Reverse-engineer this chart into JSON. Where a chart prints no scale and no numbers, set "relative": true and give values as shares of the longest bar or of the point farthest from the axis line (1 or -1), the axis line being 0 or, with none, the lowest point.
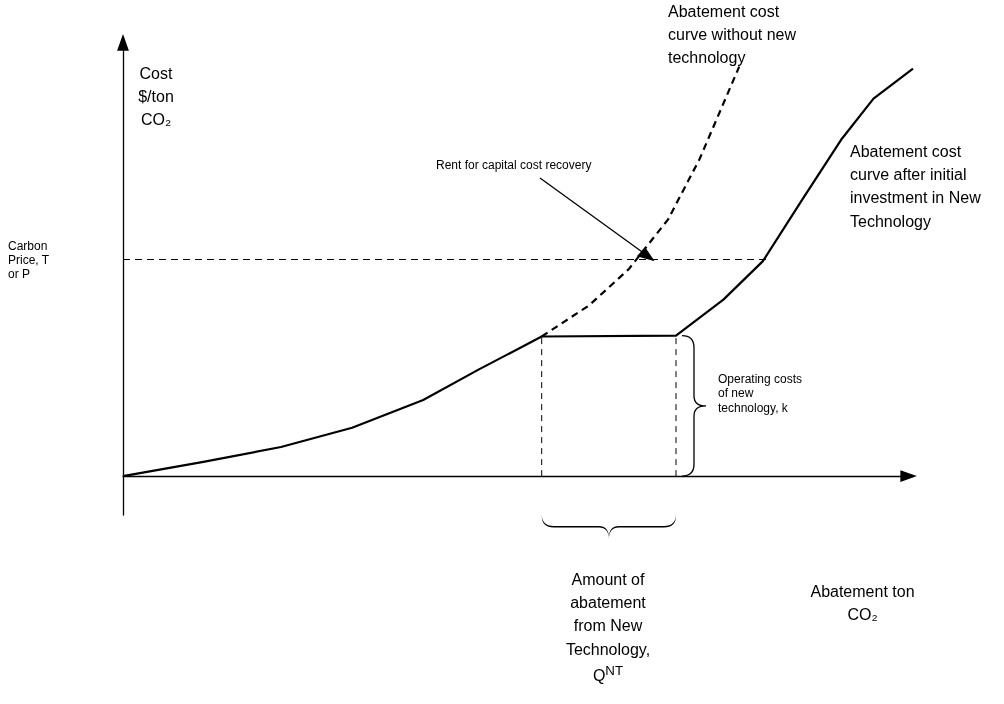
{
  "chart_data": {
    "type": "line",
    "relative": true,
    "grid": false,
    "ylabel": "Cost $/ton CO₂",
    "categories": [
      null,
      null,
      null,
      null,
      null,
      null,
      null,
      null,
      null,
      null,
      null,
      null,
      null,
      null,
      null,
      null,
      null,
      null,
      null,
      null,
      null,
      null,
      null,
      null,
      null,
      null,
      null,
      null,
      null,
      null,
      null,
      null,
      null,
      null,
      null,
      null,
      null,
      null,
      null,
      null,
      null,
      null,
      null,
      null,
      null,
      null,
      null,
      null,
      null,
      null,
      null,
      null,
      null,
      null,
      null,
      null,
      null,
      null,
      null,
      null,
      null,
      null,
      null,
      null,
      null,
      null,
      null,
      null,
      null,
      null,
      null,
      null,
      null,
      null,
      null,
      null,
      null,
      null,
      null,
      null,
      null,
      null,
      null,
      null,
      null,
      null,
      null,
      null,
      null,
      null,
      null,
      null,
      null,
      null,
      null,
      null,
      null,
      null,
      null,
      null,
      null
    ],
    "series": [
      {
        "color": "#000000",
        "line_style": "solid",
        "values": [
          0,
          null,
          null,
          null,
          null,
          null,
          null,
          null,
          null,
          null,
          0.034,
          null,
          null,
          null,
          null,
          null,
          null,
          null,
          null,
          null,
          0.071,
          null,
          null,
          null,
          null,
          null,
          null,
          null,
          null,
          0.118,
          null,
          null,
          null,
          null,
          null,
          null,
          null,
          null,
          0.186,
          null,
          null,
          null,
          null,
          null,
          null,
          0.26,
          null,
          null,
          null,
          null,
          null,
          null,
          null,
          0.341,
          null,
          null,
          null,
          null,
          null,
          null,
          null,
          null,
          null,
          null,
          null,
          null,
          null,
          null,
          null,
          null,
          0.343,
          null,
          null,
          null,
          null,
          null,
          0.431,
          null,
          null,
          null,
          null,
          0.525,
          null,
          null,
          null,
          null,
          0.676,
          null,
          null,
          null,
          null,
          0.824,
          null,
          null,
          null,
          0.922,
          null,
          null,
          null,
          null,
          0.995
        ]
      },
      {
        "color": "#000000",
        "line_style": "dashed",
        "values": [
          null,
          null,
          null,
          null,
          null,
          null,
          null,
          null,
          null,
          null,
          null,
          null,
          null,
          null,
          null,
          null,
          null,
          null,
          null,
          null,
          null,
          null,
          null,
          null,
          null,
          null,
          null,
          null,
          null,
          null,
          null,
          null,
          null,
          null,
          null,
          null,
          null,
          null,
          null,
          null,
          null,
          null,
          null,
          null,
          null,
          null,
          null,
          null,
          null,
          null,
          null,
          null,
          null,
          0.341,
          null,
          null,
          null,
          null,
          null,
          0.417,
          null,
          null,
          null,
          null,
          0.505,
          null,
          null,
          null,
          null,
          0.627,
          null,
          null,
          null,
          0.775,
          null,
          null,
          null,
          null,
          1.0,
          null,
          null,
          null,
          null,
          null,
          null,
          null,
          null,
          null,
          null,
          null,
          null,
          null,
          null,
          null,
          null,
          null,
          null,
          null,
          null,
          null,
          null
        ]
      }
    ],
    "ref_lines": [
      {
        "axis": "y",
        "value": 0.529,
        "label": "Carbon Price, T or P",
        "line_style": "dashed",
        "color": "#000000"
      }
    ],
    "annotations": [
      "Abatement cost curve without new technology",
      "Rent for capital cost recovery",
      "Abatement cost curve after initial investment in New Technology",
      "Operating costs of new technology, k",
      "Amount of abatement from New Technology, Q$^{NT}$",
      "Abatement ton CO₂"
    ]
  }
}
